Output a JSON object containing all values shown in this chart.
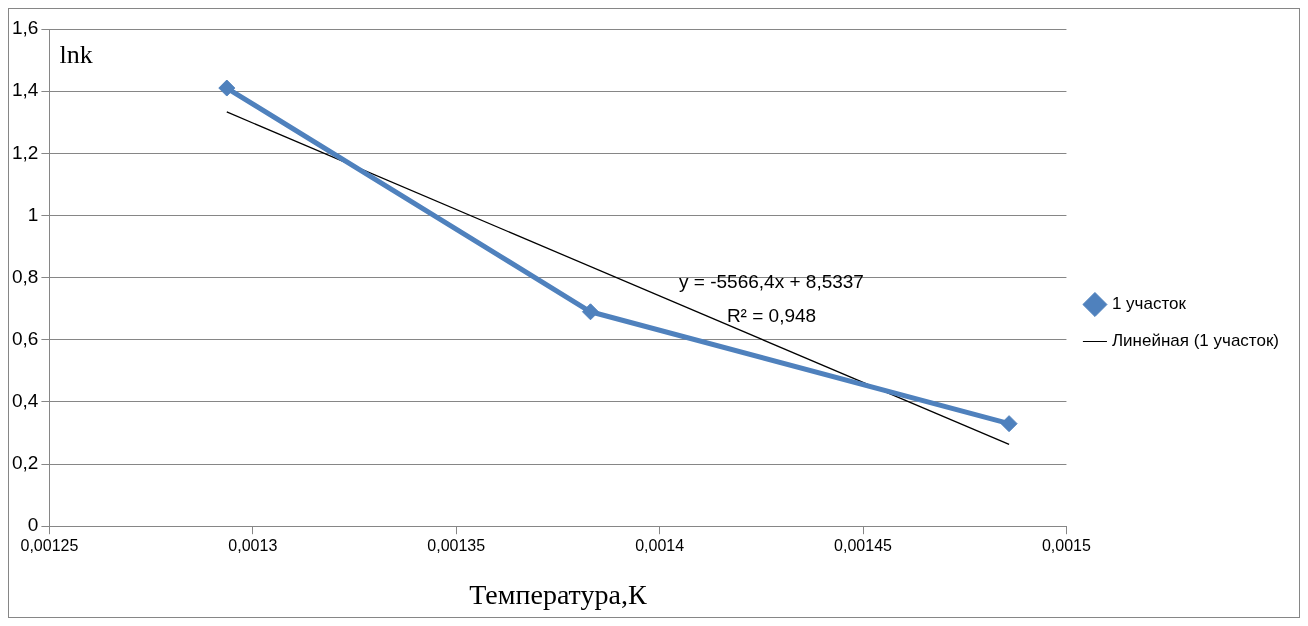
{
  "chart_data": {
    "type": "line",
    "xlabel": "Температура,К",
    "ylabel": "lnk",
    "xlim": [
      0.00125,
      0.0015
    ],
    "xticks": [
      {
        "value": 0.00125,
        "label": "0,00125"
      },
      {
        "value": 0.0013,
        "label": "0,0013"
      },
      {
        "value": 0.00135,
        "label": "0,00135"
      },
      {
        "value": 0.0014,
        "label": "0,0014"
      },
      {
        "value": 0.00145,
        "label": "0,00145"
      },
      {
        "value": 0.0015,
        "label": "0,0015"
      }
    ],
    "ylim": [
      0,
      1.6
    ],
    "yticks": [
      0,
      {
        "value": 0.2,
        "label": "0,2"
      },
      {
        "value": 0.4,
        "label": "0,4"
      },
      {
        "value": 0.6,
        "label": "0,6"
      },
      {
        "value": 0.8,
        "label": "0,8"
      },
      1,
      {
        "value": 1.2,
        "label": "1,2"
      },
      {
        "value": 1.4,
        "label": "1,4"
      },
      {
        "value": 1.6,
        "label": "1,6"
      }
    ],
    "grid": "y",
    "legend": "right",
    "marker": "diamond",
    "series": [
      {
        "name": "1 участок",
        "color": "#4f81bd",
        "x": [
          0.0012936,
          0.001383,
          0.0014859
        ],
        "values": [
          1.41,
          0.69,
          0.33
        ]
      },
      {
        "name": "Линейная (1 участок)",
        "type": "line",
        "color": "#000000",
        "marker": "none",
        "x": [
          0.0012936,
          0.0014859
        ],
        "values": [
          1.333,
          0.263
        ]
      }
    ],
    "annotations": [
      "y = -5566,4x + 8,5337",
      "R² = 0,948"
    ]
  }
}
